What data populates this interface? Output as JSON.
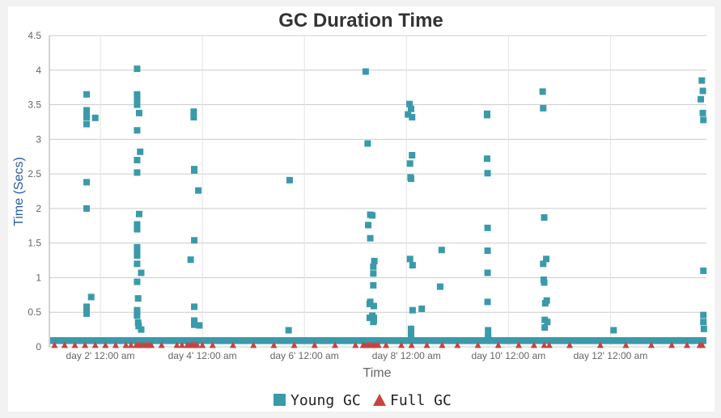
{
  "chart_data": {
    "type": "scatter",
    "title": "GC Duration Time",
    "xlabel": "Time",
    "ylabel": "Time (Secs)",
    "x_ticks": [
      "day 2' 12:00 am",
      "day 4' 12:00 am",
      "day 6' 12:00 am",
      "day 8' 12:00 am",
      "day 10' 12:00 am",
      "day 12' 12:00 am"
    ],
    "x_tick_values": [
      2,
      4,
      6,
      8,
      10,
      12
    ],
    "xlim": [
      1.0,
      13.88
    ],
    "y_ticks": [
      "0",
      "0.5",
      "1",
      "1.5",
      "2",
      "2.5",
      "3",
      "3.5",
      "4",
      "4.5"
    ],
    "ylim": [
      0,
      4.5
    ],
    "grid": true,
    "legend_position": "bottom",
    "series": [
      {
        "name": "Young GC",
        "marker": "square",
        "color": "#3a9aaa",
        "x": [
          1.73,
          1.73,
          1.73,
          1.73,
          1.73,
          1.73,
          1.73,
          1.73,
          1.73,
          1.73,
          1.82,
          1.9,
          2.72,
          2.72,
          2.72,
          2.72,
          2.72,
          2.72,
          2.72,
          2.72,
          2.72,
          2.72,
          2.72,
          2.72,
          2.72,
          2.72,
          2.72,
          2.72,
          2.72,
          2.74,
          2.74,
          2.75,
          2.76,
          2.76,
          2.78,
          2.8,
          2.8,
          2.82,
          2.84,
          3.77,
          3.83,
          3.83,
          3.84,
          3.84,
          3.84,
          3.84,
          3.84,
          3.84,
          3.84,
          3.92,
          3.94,
          5.69,
          5.71,
          7.2,
          7.24,
          7.25,
          7.28,
          7.28,
          7.29,
          7.29,
          7.29,
          7.33,
          7.33,
          7.35,
          7.35,
          7.35,
          7.35,
          7.36,
          7.36,
          7.36,
          7.37,
          8.03,
          8.06,
          8.07,
          8.07,
          8.08,
          8.09,
          8.09,
          8.09,
          8.09,
          8.11,
          8.11,
          8.12,
          8.12,
          8.3,
          8.66,
          8.69,
          9.58,
          9.58,
          9.58,
          9.59,
          9.59,
          9.59,
          9.59,
          9.59,
          9.6,
          9.6,
          9.6,
          10.67,
          10.68,
          10.68,
          10.69,
          10.7,
          10.7,
          10.71,
          10.71,
          10.72,
          10.74,
          10.75,
          10.76,
          12.06,
          13.77,
          13.79,
          13.81,
          13.81,
          13.82,
          13.82,
          13.82,
          13.82,
          13.83
        ],
        "y": [
          3.65,
          3.42,
          3.37,
          3.32,
          3.22,
          2.38,
          2.0,
          0.58,
          0.55,
          0.48,
          0.72,
          3.31,
          4.02,
          3.65,
          3.59,
          3.5,
          3.13,
          2.7,
          2.52,
          1.77,
          1.7,
          1.44,
          1.39,
          1.32,
          1.2,
          0.94,
          0.53,
          0.45,
          0.5,
          0.7,
          0.35,
          0.3,
          3.38,
          1.92,
          2.82,
          1.07,
          0.25,
          0.04,
          0.08,
          1.26,
          3.4,
          3.32,
          2.57,
          2.55,
          1.54,
          0.58,
          0.38,
          0.34,
          0.32,
          2.26,
          0.31,
          0.24,
          2.41,
          3.98,
          2.94,
          1.76,
          0.62,
          0.42,
          1.91,
          1.57,
          0.65,
          1.9,
          0.45,
          1.16,
          1.06,
          0.89,
          0.36,
          0.59,
          0.42,
          0.38,
          1.24,
          3.36,
          3.51,
          2.65,
          1.27,
          2.45,
          3.44,
          2.43,
          0.26,
          0.18,
          3.32,
          2.77,
          0.53,
          1.18,
          0.55,
          0.87,
          1.4,
          3.35,
          3.37,
          2.72,
          2.51,
          1.72,
          1.39,
          1.07,
          0.65,
          0.24,
          0.15,
          0.12,
          3.69,
          3.45,
          1.2,
          0.97,
          0.93,
          1.87,
          0.39,
          0.28,
          0.63,
          1.27,
          0.67,
          0.36,
          0.24,
          3.58,
          3.85,
          3.7,
          3.38,
          3.28,
          1.1,
          0.46,
          0.36,
          0.26
        ]
      },
      {
        "name": "Full GC",
        "marker": "triangle",
        "color": "#c8433f",
        "x": [
          1.1,
          1.3,
          1.5,
          1.7,
          1.9,
          2.1,
          2.3,
          2.5,
          2.6,
          2.7,
          2.75,
          2.8,
          2.85,
          2.9,
          2.95,
          3.0,
          3.2,
          3.5,
          3.6,
          3.7,
          3.75,
          3.8,
          3.85,
          3.9,
          4.0,
          4.2,
          4.6,
          5.0,
          5.4,
          5.8,
          6.2,
          6.6,
          7.0,
          7.15,
          7.2,
          7.25,
          7.3,
          7.35,
          7.4,
          7.45,
          7.6,
          7.9,
          8.1,
          8.4,
          8.7,
          9.0,
          9.4,
          9.8,
          10.2,
          10.5,
          10.7,
          10.8,
          11.2,
          11.8,
          12.3,
          12.8,
          13.2,
          13.5,
          13.75,
          13.8
        ],
        "y": [
          0.03,
          0.03,
          0.03,
          0.03,
          0.03,
          0.03,
          0.03,
          0.03,
          0.03,
          0.03,
          0.03,
          0.03,
          0.03,
          0.03,
          0.03,
          0.03,
          0.03,
          0.03,
          0.03,
          0.03,
          0.03,
          0.03,
          0.03,
          0.03,
          0.03,
          0.03,
          0.03,
          0.03,
          0.03,
          0.03,
          0.03,
          0.03,
          0.03,
          0.03,
          0.03,
          0.03,
          0.03,
          0.03,
          0.03,
          0.03,
          0.03,
          0.03,
          0.03,
          0.03,
          0.03,
          0.03,
          0.03,
          0.03,
          0.03,
          0.03,
          0.03,
          0.03,
          0.03,
          0.03,
          0.03,
          0.03,
          0.03,
          0.03,
          0.03,
          0.03
        ]
      }
    ],
    "baseline_band": {
      "name": "Young GC",
      "y_range": [
        0.04,
        0.14
      ]
    }
  },
  "colors": {
    "young": "#3a9aaa",
    "full": "#c8433f",
    "grid": "#cccccc",
    "axis_title": "#2a5d9f"
  }
}
